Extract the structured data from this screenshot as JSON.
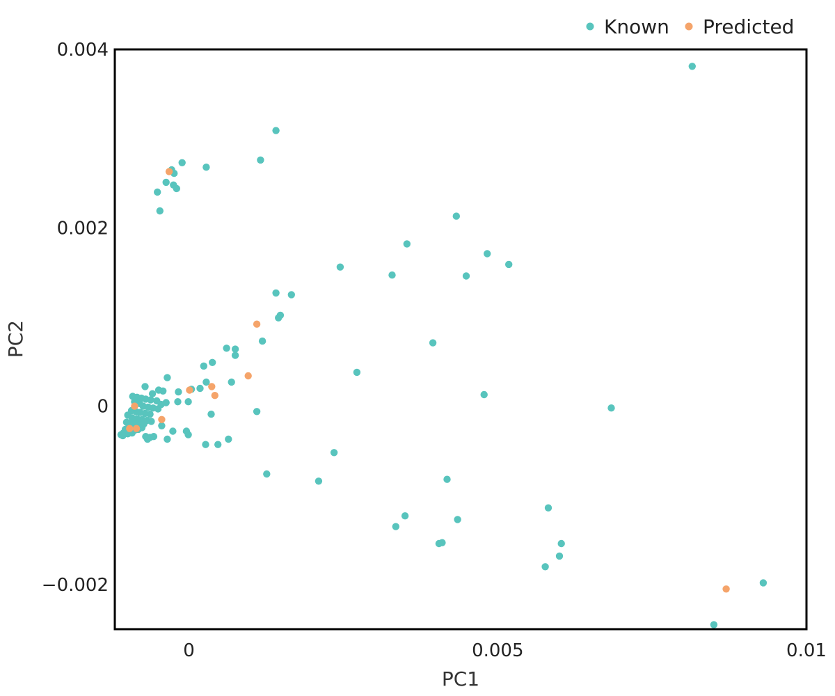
{
  "chart_data": {
    "type": "scatter",
    "xlabel": "PC1",
    "ylabel": "PC2",
    "xlim": [
      -0.0012,
      0.01
    ],
    "ylim": [
      -0.0025,
      0.004
    ],
    "x_ticks": [
      0,
      0.005,
      0.01
    ],
    "y_ticks": [
      -0.002,
      0,
      0.002,
      0.004
    ],
    "x_tick_labels": [
      "0",
      "0.005",
      "0.01"
    ],
    "y_tick_labels": [
      "−0.002",
      "0",
      "0.002",
      "0.004"
    ],
    "grid": false,
    "legend_position": "top-right",
    "series": [
      {
        "name": "Known",
        "color": "#58c4bd",
        "points": [
          [
            0.00815,
            0.00381
          ],
          [
            0.00141,
            0.00309
          ],
          [
            0.00116,
            0.00276
          ],
          [
            -0.00011,
            0.00273
          ],
          [
            0.00028,
            0.00268
          ],
          [
            -0.00028,
            0.00265
          ],
          [
            -0.00024,
            0.00261
          ],
          [
            -0.00037,
            0.00251
          ],
          [
            -0.00025,
            0.00248
          ],
          [
            -0.0002,
            0.00244
          ],
          [
            -0.00051,
            0.0024
          ],
          [
            -0.00047,
            0.00219
          ],
          [
            0.00433,
            0.00213
          ],
          [
            0.00353,
            0.00182
          ],
          [
            0.00483,
            0.00171
          ],
          [
            0.00518,
            0.00159
          ],
          [
            0.00245,
            0.00156
          ],
          [
            0.00329,
            0.00147
          ],
          [
            0.00449,
            0.00146
          ],
          [
            0.00141,
            0.00127
          ],
          [
            0.00166,
            0.00125
          ],
          [
            0.00148,
            0.00102
          ],
          [
            0.00145,
            0.00099
          ],
          [
            0.00119,
            0.00073
          ],
          [
            0.00395,
            0.00071
          ],
          [
            0.00061,
            0.00065
          ],
          [
            0.00075,
            0.00064
          ],
          [
            0.00075,
            0.00057
          ],
          [
            0.00038,
            0.00049
          ],
          [
            0.00024,
            0.00045
          ],
          [
            0.00272,
            0.00038
          ],
          [
            -0.00035,
            0.00032
          ],
          [
            0.00069,
            0.00027
          ],
          [
            0.00028,
            0.00027
          ],
          [
            -0.00071,
            0.00022
          ],
          [
            0.00018,
            0.0002
          ],
          [
            4e-05,
            0.00019
          ],
          [
            -0.00049,
            0.00018
          ],
          [
            -0.00042,
            0.00017
          ],
          [
            -0.00017,
            0.00016
          ],
          [
            -0.00059,
            0.00014
          ],
          [
            0.00478,
            0.00013
          ],
          [
            -0.00091,
            0.00011
          ],
          [
            -0.00084,
            0.0001
          ],
          [
            -0.00077,
            9e-05
          ],
          [
            -0.0007,
            8e-05
          ],
          [
            -0.00062,
            7e-05
          ],
          [
            -0.00052,
            6e-05
          ],
          [
            -0.00088,
            5e-05
          ],
          [
            -0.0008,
            3e-05
          ],
          [
            -0.00045,
            2e-05
          ],
          [
            -0.00037,
            4e-05
          ],
          [
            -0.00018,
            5e-05
          ],
          [
            -1e-05,
            5e-05
          ],
          [
            -0.00074,
            0.0
          ],
          [
            -0.00066,
            -1e-05
          ],
          [
            -0.00058,
            -2e-05
          ],
          [
            -0.0005,
            -3e-05
          ],
          [
            -0.00093,
            -5e-05
          ],
          [
            0.00684,
            -2e-05
          ],
          [
            -0.00086,
            -6e-05
          ],
          [
            -0.00079,
            -7e-05
          ],
          [
            -0.00071,
            -8e-05
          ],
          [
            -0.00063,
            -9e-05
          ],
          [
            0.0011,
            -6e-05
          ],
          [
            0.00036,
            -9e-05
          ],
          [
            -0.00099,
            -0.0001
          ],
          [
            -0.00092,
            -0.00013
          ],
          [
            -0.00084,
            -0.00014
          ],
          [
            -0.00076,
            -0.00015
          ],
          [
            -0.00068,
            -0.00016
          ],
          [
            -0.00061,
            -0.00017
          ],
          [
            -0.00101,
            -0.00018
          ],
          [
            -0.00094,
            -0.00019
          ],
          [
            -0.00087,
            -0.0002
          ],
          [
            -0.0008,
            -0.00021
          ],
          [
            -0.00073,
            -0.0002
          ],
          [
            -0.00044,
            -0.00022
          ],
          [
            -0.00097,
            -0.00023
          ],
          [
            -0.0009,
            -0.00025
          ],
          [
            -0.00083,
            -0.00023
          ],
          [
            -0.00076,
            -0.00024
          ],
          [
            -0.00103,
            -0.00026
          ],
          [
            -0.00095,
            -0.00027
          ],
          [
            -0.00088,
            -0.00027
          ],
          [
            -0.00082,
            -0.00026
          ],
          [
            -0.00026,
            -0.00028
          ],
          [
            -4e-05,
            -0.00028
          ],
          [
            -0.00106,
            -0.0003
          ],
          [
            -0.00099,
            -0.00031
          ],
          [
            -0.00092,
            -0.0003
          ],
          [
            -0.0011,
            -0.00032
          ],
          [
            -0.00107,
            -0.00033
          ],
          [
            -1e-05,
            -0.00032
          ],
          [
            -0.0007,
            -0.00034
          ],
          [
            -0.00063,
            -0.00035
          ],
          [
            -0.00067,
            -0.00037
          ],
          [
            -0.00057,
            -0.00034
          ],
          [
            -0.00035,
            -0.00037
          ],
          [
            0.00064,
            -0.00037
          ],
          [
            0.00047,
            -0.00043
          ],
          [
            0.00027,
            -0.00043
          ],
          [
            0.00235,
            -0.00052
          ],
          [
            0.00126,
            -0.00076
          ],
          [
            0.0021,
            -0.00084
          ],
          [
            0.00418,
            -0.00082
          ],
          [
            0.00582,
            -0.00114
          ],
          [
            0.0035,
            -0.00123
          ],
          [
            0.00435,
            -0.00127
          ],
          [
            0.00335,
            -0.00135
          ],
          [
            0.00405,
            -0.00154
          ],
          [
            0.0041,
            -0.00153
          ],
          [
            0.00603,
            -0.00154
          ],
          [
            0.006,
            -0.00168
          ],
          [
            0.00577,
            -0.0018
          ],
          [
            0.0093,
            -0.00198
          ],
          [
            0.0085,
            -0.00245
          ]
        ]
      },
      {
        "name": "Predicted",
        "color": "#f5a46a",
        "points": [
          [
            -0.00032,
            0.00263
          ],
          [
            0.0011,
            0.00092
          ],
          [
            0.00096,
            0.00034
          ],
          [
            0.00037,
            0.00022
          ],
          [
            0.00042,
            0.00012
          ],
          [
            1e-05,
            0.00018
          ],
          [
            -0.00088,
            0.0
          ],
          [
            -0.00044,
            -0.00015
          ],
          [
            -0.00096,
            -0.00025
          ],
          [
            -0.00085,
            -0.00025
          ],
          [
            0.0087,
            -0.00205
          ]
        ]
      }
    ]
  }
}
